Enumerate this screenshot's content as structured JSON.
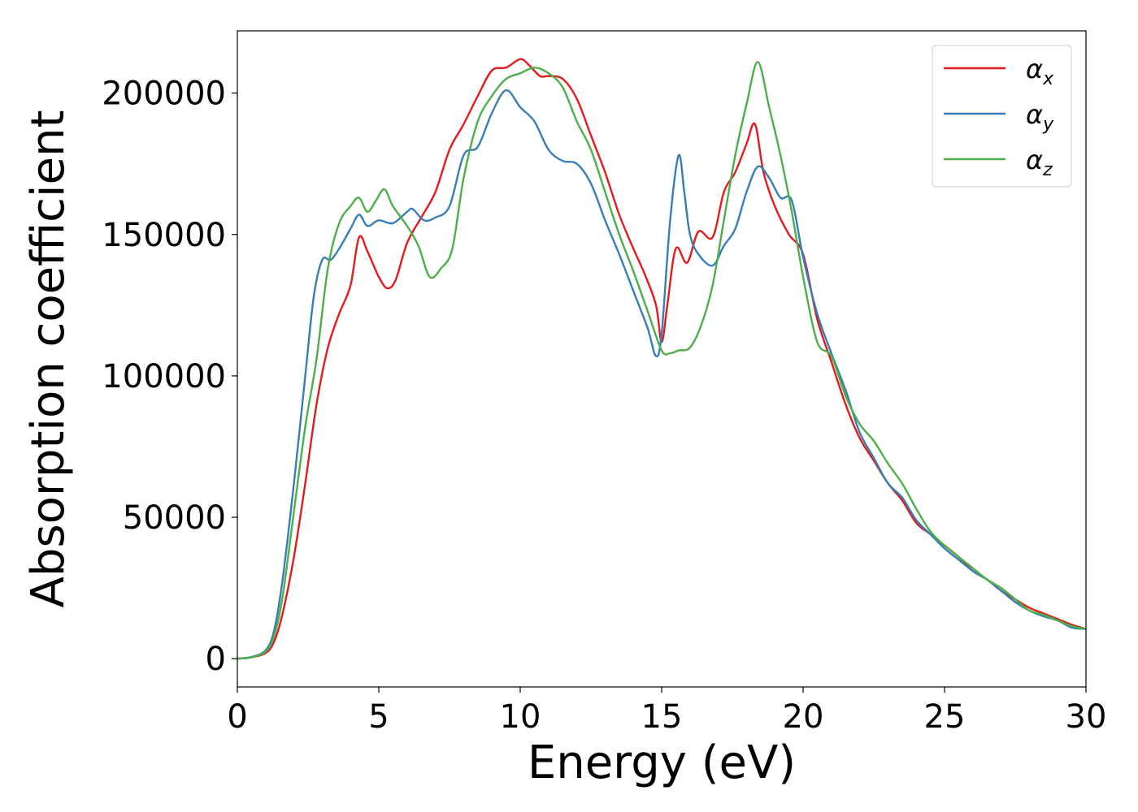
{
  "chart_data": {
    "type": "line",
    "title": "",
    "xlabel": "Energy (eV)",
    "ylabel": "Absorption coefficient",
    "xlim": [
      0,
      30
    ],
    "ylim": [
      -10000,
      222000
    ],
    "xticks": [
      0,
      5,
      10,
      15,
      20,
      25,
      30
    ],
    "yticks": [
      0,
      50000,
      100000,
      150000,
      200000
    ],
    "grid": false,
    "legend_position": "top-right",
    "series": [
      {
        "name": "αx",
        "legend_base": "α",
        "legend_sub": "x",
        "color": "#e41a1c",
        "x": [
          0,
          0.5,
          1.0,
          1.3,
          1.6,
          2.0,
          2.4,
          2.8,
          3.2,
          3.6,
          4.0,
          4.3,
          4.6,
          5.0,
          5.3,
          5.6,
          6.0,
          6.5,
          7.0,
          7.5,
          8.0,
          8.5,
          9.0,
          9.5,
          10.0,
          10.3,
          10.7,
          11.0,
          11.5,
          12.0,
          12.5,
          13.0,
          13.5,
          14.0,
          14.4,
          14.8,
          15.0,
          15.2,
          15.5,
          15.9,
          16.3,
          16.8,
          17.2,
          17.6,
          18.0,
          18.3,
          18.6,
          19.0,
          19.5,
          20.0,
          20.5,
          21.0,
          21.5,
          22.0,
          22.5,
          23.0,
          23.5,
          24.0,
          24.5,
          25.0,
          25.5,
          26.0,
          26.5,
          27.0,
          27.5,
          28.0,
          28.5,
          29.0,
          29.5,
          30.0
        ],
        "y": [
          0,
          500,
          2000,
          6000,
          16000,
          36000,
          62000,
          90000,
          110000,
          122000,
          132000,
          149000,
          144000,
          135000,
          131000,
          134000,
          147000,
          156000,
          165000,
          180000,
          189000,
          199000,
          208000,
          209000,
          212000,
          210000,
          206000,
          206000,
          205000,
          198000,
          185000,
          172000,
          157000,
          145000,
          136000,
          125000,
          112000,
          125000,
          145000,
          140000,
          151000,
          149000,
          165000,
          172000,
          182000,
          189000,
          172000,
          160000,
          150000,
          143000,
          120000,
          105000,
          90000,
          78000,
          70000,
          62000,
          56000,
          48000,
          44000,
          40000,
          36000,
          31000,
          28000,
          24000,
          21000,
          18000,
          16000,
          14000,
          12000,
          10500
        ]
      },
      {
        "name": "αy",
        "legend_base": "α",
        "legend_sub": "y",
        "color": "#377eb8",
        "x": [
          0,
          0.5,
          1.0,
          1.3,
          1.6,
          2.0,
          2.4,
          2.7,
          3.0,
          3.3,
          3.6,
          4.0,
          4.3,
          4.6,
          5.0,
          5.5,
          6.0,
          6.2,
          6.6,
          7.0,
          7.5,
          8.0,
          8.5,
          9.0,
          9.5,
          10.0,
          10.5,
          11.0,
          11.5,
          12.0,
          12.5,
          13.0,
          13.5,
          14.0,
          14.5,
          14.8,
          15.0,
          15.3,
          15.6,
          15.8,
          16.0,
          16.3,
          16.8,
          17.2,
          17.6,
          18.0,
          18.4,
          18.8,
          19.2,
          19.6,
          20.0,
          20.5,
          21.0,
          21.5,
          22.0,
          22.5,
          23.0,
          23.5,
          24.0,
          24.5,
          25.0,
          25.5,
          26.0,
          26.5,
          27.0,
          27.5,
          28.0,
          28.5,
          29.0,
          29.5,
          30.0
        ],
        "y": [
          0,
          600,
          3000,
          10000,
          28000,
          62000,
          100000,
          128000,
          141000,
          141000,
          145000,
          152000,
          157000,
          153000,
          155000,
          154000,
          158000,
          159000,
          155000,
          156000,
          160000,
          178000,
          181000,
          193000,
          201000,
          195000,
          190000,
          180000,
          176000,
          175000,
          168000,
          155000,
          143000,
          130000,
          117000,
          107000,
          115000,
          155000,
          178000,
          165000,
          150000,
          143000,
          139000,
          146000,
          152000,
          165000,
          174000,
          170000,
          163000,
          162000,
          142000,
          122000,
          108000,
          95000,
          80000,
          71000,
          62000,
          57000,
          49000,
          44000,
          39000,
          35000,
          31000,
          28000,
          24000,
          20000,
          17000,
          15000,
          13500,
          11000,
          10500
        ]
      },
      {
        "name": "αz",
        "legend_base": "α",
        "legend_sub": "z",
        "color": "#4daf4a",
        "x": [
          0,
          0.5,
          1.0,
          1.3,
          1.6,
          2.0,
          2.4,
          2.8,
          3.2,
          3.6,
          4.0,
          4.3,
          4.6,
          4.9,
          5.2,
          5.5,
          6.0,
          6.4,
          6.8,
          7.2,
          7.6,
          8.0,
          8.5,
          9.0,
          9.5,
          10.0,
          10.5,
          11.0,
          11.5,
          12.0,
          12.5,
          13.0,
          13.5,
          14.0,
          14.5,
          15.0,
          15.3,
          15.6,
          16.0,
          16.4,
          16.8,
          17.2,
          17.6,
          18.0,
          18.4,
          18.8,
          19.2,
          19.6,
          20.0,
          20.5,
          21.0,
          21.5,
          22.0,
          22.5,
          23.0,
          23.5,
          24.0,
          24.5,
          25.0,
          25.5,
          26.0,
          26.5,
          27.0,
          27.5,
          28.0,
          28.5,
          29.0,
          29.5,
          30.0
        ],
        "y": [
          0,
          500,
          2500,
          8000,
          22000,
          52000,
          82000,
          106000,
          138000,
          154000,
          160000,
          163000,
          158000,
          162000,
          166000,
          160000,
          153000,
          146000,
          135000,
          138000,
          145000,
          170000,
          190000,
          199000,
          205000,
          207000,
          209000,
          207000,
          202000,
          190000,
          180000,
          165000,
          150000,
          137000,
          123000,
          109000,
          108000,
          109000,
          110000,
          118000,
          132000,
          155000,
          178000,
          196000,
          211000,
          195000,
          178000,
          158000,
          135000,
          112000,
          107000,
          93000,
          83000,
          77000,
          69000,
          62000,
          53000,
          45000,
          40000,
          36000,
          32000,
          28000,
          25000,
          21000,
          17000,
          15500,
          13500,
          11500,
          10500
        ]
      }
    ]
  }
}
